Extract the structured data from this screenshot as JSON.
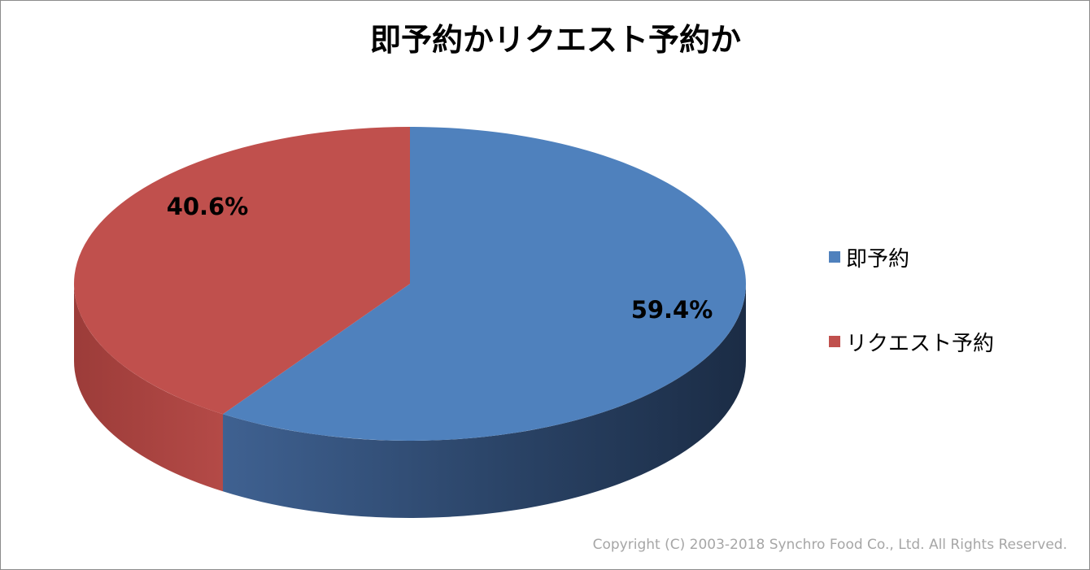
{
  "chart_data": {
    "type": "pie",
    "title": "即予約かリクエスト予約か",
    "categories": [
      "即予約",
      "リクエスト予約"
    ],
    "values": [
      59.4,
      40.6
    ],
    "data_labels": [
      "59.4%",
      "40.6%"
    ],
    "colors": [
      "#4f81bd",
      "#c0504d"
    ],
    "legend_position": "right",
    "three_d": true
  },
  "footer": {
    "copyright": "Copyright (C) 2003-2018  Synchro Food Co., Ltd. All Rights Reserved."
  }
}
